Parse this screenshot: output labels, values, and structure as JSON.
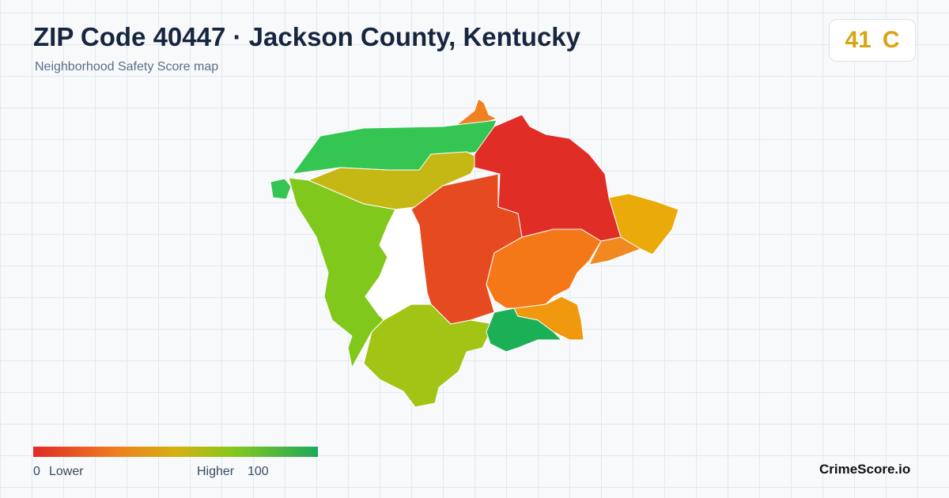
{
  "header": {
    "title": "ZIP Code 40447 · Jackson County, Kentucky",
    "subtitle": "Neighborhood Safety Score map"
  },
  "score": {
    "value": "41",
    "grade": "C"
  },
  "legend": {
    "min": "0",
    "min_label": "Lower",
    "max_label": "Higher",
    "max": "100"
  },
  "brand": "CrimeScore.io"
}
